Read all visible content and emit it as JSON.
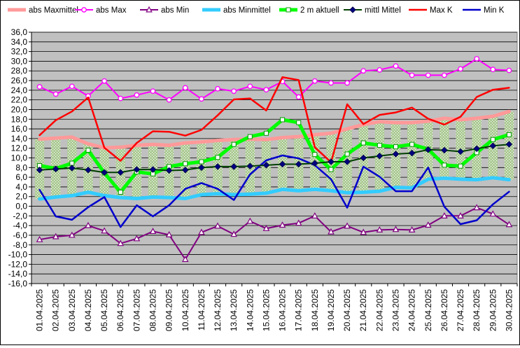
{
  "chart_data": {
    "type": "line",
    "title": "",
    "xlabel": "",
    "ylabel": "",
    "ylim": [
      -16,
      36
    ],
    "y_ticks": [
      "36,0",
      "34,0",
      "32,0",
      "30,0",
      "28,0",
      "26,0",
      "24,0",
      "22,0",
      "20,0",
      "18,0",
      "16,0",
      "14,0",
      "12,0",
      "10,0",
      "8,0",
      "6,0",
      "4,0",
      "2,0",
      "0,0",
      "-2,0",
      "-4,0",
      "-6,0",
      "-8,0",
      "-10,0",
      "-12,0",
      "-14,0",
      "-16,0"
    ],
    "grid": true,
    "plot_background": "#c0c0c0",
    "legend_position": "top",
    "categories": [
      "01.04.2025",
      "02.04.2025",
      "03.04.2025",
      "04.04.2025",
      "05.04.2025",
      "06.04.2025",
      "07.04.2025",
      "08.04.2025",
      "09.04.2025",
      "10.04.2025",
      "11.04.2025",
      "12.04.2025",
      "13.04.2025",
      "14.04.2025",
      "15.04.2025",
      "16.04.2025",
      "17.04.2025",
      "18.04.2025",
      "19.04.2025",
      "20.04.2025",
      "21.04.2025",
      "22.04.2025",
      "23.04.2025",
      "24.04.2025",
      "25.04.2025",
      "26.04.2025",
      "27.04.2025",
      "28.04.2025",
      "29.04.2025",
      "30.04.2025"
    ],
    "series": [
      {
        "name": "abs Maxmittel",
        "color": "#ff9999",
        "style": "thick",
        "marker": "none",
        "values": [
          13.9,
          14.1,
          14.3,
          12.9,
          12.1,
          12.2,
          12.6,
          12.8,
          12.6,
          13.1,
          13.3,
          13.6,
          13.8,
          13.9,
          13.8,
          14.2,
          14.4,
          14.8,
          15.1,
          16.0,
          16.9,
          17.5,
          17.3,
          17.3,
          17.6,
          18.2,
          17.9,
          18.2,
          18.6,
          19.6
        ]
      },
      {
        "name": "abs Max",
        "color": "#ff00ff",
        "style": "normal",
        "marker": "circle",
        "values": [
          24.7,
          23.2,
          24.8,
          22.8,
          25.9,
          22.3,
          23.0,
          23.8,
          22.0,
          24.5,
          22.2,
          24.3,
          23.8,
          24.8,
          24.1,
          25.8,
          22.6,
          25.9,
          25.5,
          25.5,
          28.0,
          28.2,
          29.0,
          27.1,
          27.1,
          27.1,
          28.4,
          30.5,
          28.3,
          28.1
        ]
      },
      {
        "name": "abs Min",
        "color": "#800080",
        "style": "normal",
        "marker": "triangle",
        "values": [
          -6.9,
          -6.3,
          -6.0,
          -4.0,
          -5.1,
          -7.7,
          -6.7,
          -5.2,
          -5.9,
          -11.0,
          -5.4,
          -4.1,
          -5.8,
          -3.1,
          -4.6,
          -3.9,
          -3.5,
          -2.0,
          -5.3,
          -4.1,
          -5.4,
          -4.9,
          -4.8,
          -4.9,
          -3.9,
          -2.0,
          -2.0,
          -0.3,
          -1.6,
          -3.8
        ]
      },
      {
        "name": "abs Minmittel",
        "color": "#33ccff",
        "style": "thick",
        "marker": "none",
        "values": [
          1.5,
          1.9,
          2.2,
          2.9,
          2.2,
          1.8,
          1.6,
          1.9,
          1.8,
          1.6,
          2.4,
          2.6,
          2.4,
          2.5,
          2.7,
          3.5,
          3.2,
          3.5,
          3.2,
          2.8,
          2.9,
          3.1,
          3.9,
          3.8,
          5.6,
          5.8,
          5.6,
          5.5,
          5.9,
          5.5
        ]
      },
      {
        "name": "2 m aktuell",
        "color": "#00ff00",
        "style": "thick",
        "marker": "square",
        "values": [
          8.4,
          7.8,
          8.9,
          11.6,
          6.9,
          2.9,
          7.1,
          6.7,
          8.2,
          8.8,
          9.2,
          10.1,
          12.8,
          14.4,
          15.1,
          17.9,
          17.3,
          10.7,
          7.6,
          10.8,
          13.1,
          12.6,
          12.3,
          12.8,
          11.8,
          8.5,
          8.3,
          11.1,
          13.8,
          14.8
        ]
      },
      {
        "name": "mittl Mittel",
        "color": "#004000",
        "style": "normal",
        "marker": "diamond",
        "values": [
          7.5,
          7.7,
          7.9,
          7.5,
          7.0,
          7.0,
          7.6,
          7.6,
          7.4,
          7.5,
          8.0,
          8.2,
          8.2,
          8.3,
          8.5,
          8.7,
          8.7,
          8.9,
          9.2,
          9.2,
          10.0,
          10.4,
          10.8,
          11.0,
          11.7,
          11.6,
          11.3,
          11.9,
          12.5,
          12.8
        ]
      },
      {
        "name": "Max K",
        "color": "#ff0000",
        "style": "medium",
        "marker": "none",
        "values": [
          14.7,
          17.8,
          19.6,
          22.5,
          12.1,
          9.4,
          13.1,
          15.5,
          15.4,
          14.6,
          15.8,
          18.8,
          22.1,
          22.3,
          19.8,
          26.7,
          26.1,
          12.2,
          9.1,
          21.1,
          17.0,
          18.9,
          19.4,
          20.4,
          18.1,
          16.9,
          18.5,
          22.6,
          24.1,
          24.5
        ]
      },
      {
        "name": "Min K",
        "color": "#0000cc",
        "style": "medium",
        "marker": "none",
        "values": [
          3.4,
          -2.1,
          -2.8,
          -0.2,
          1.9,
          -4.3,
          0.2,
          -2.1,
          0.2,
          3.6,
          4.8,
          3.6,
          1.3,
          6.6,
          9.5,
          10.5,
          9.9,
          8.5,
          5.6,
          -0.3,
          8.2,
          6.1,
          3.1,
          3.1,
          8.0,
          -0.1,
          -3.7,
          -2.9,
          0.4,
          3.0
        ]
      }
    ]
  }
}
